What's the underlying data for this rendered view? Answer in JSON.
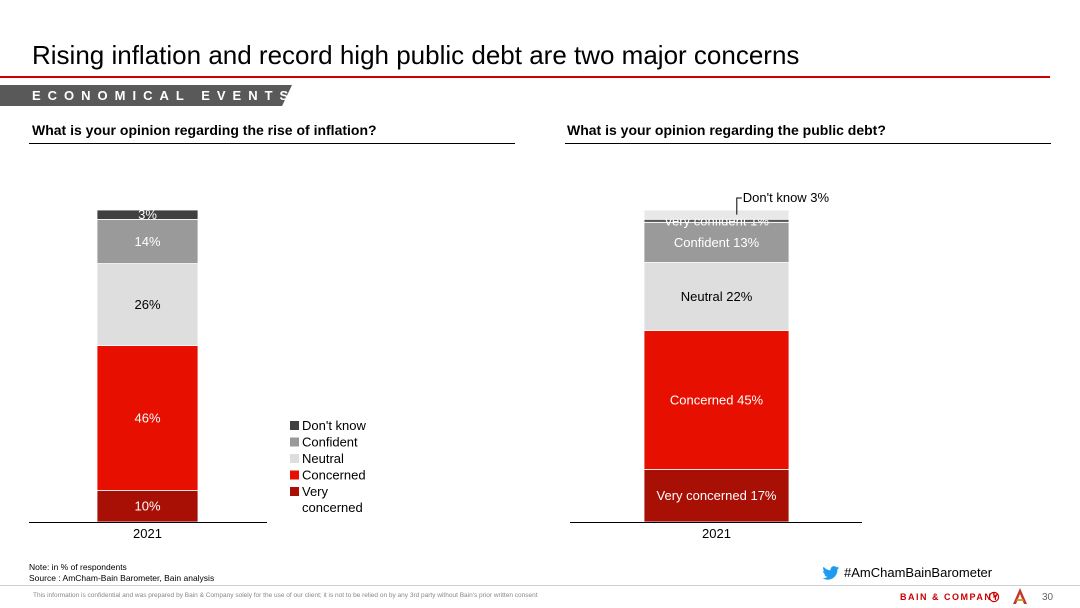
{
  "header": {
    "title": "Rising inflation and record high public debt are two major concerns",
    "section": "ECONOMICAL EVENTS"
  },
  "charts": {
    "left": {
      "question": "What is your opinion regarding the rise of inflation?"
    },
    "right": {
      "question": "What is your opinion regarding the public debt?"
    }
  },
  "legend": [
    {
      "label": "Don't know",
      "color": "#404040"
    },
    {
      "label": "Confident",
      "color": "#9a9a9a"
    },
    {
      "label": "Neutral",
      "color": "#dedede"
    },
    {
      "label": "Concerned",
      "color": "#e60f00"
    },
    {
      "label": "Very concerned",
      "color": "#a80f05"
    }
  ],
  "chart_data": [
    {
      "type": "bar",
      "stacked": true,
      "title": "What is your opinion regarding the rise of inflation?",
      "categories": [
        "2021"
      ],
      "series": [
        {
          "name": "Very concerned",
          "values": [
            10
          ],
          "label": "10%",
          "color": "#a80f05",
          "text_color": "#ffffff"
        },
        {
          "name": "Concerned",
          "values": [
            46
          ],
          "label": "46%",
          "color": "#e60f00",
          "text_color": "#ffffff"
        },
        {
          "name": "Neutral",
          "values": [
            26
          ],
          "label": "26%",
          "color": "#dedede",
          "text_color": "#000000"
        },
        {
          "name": "Confident",
          "values": [
            14
          ],
          "label": "14%",
          "color": "#9a9a9a",
          "text_color": "#ffffff"
        },
        {
          "name": "Don't know",
          "values": [
            3
          ],
          "label": "3%",
          "color": "#404040",
          "text_color": "#ffffff"
        }
      ],
      "ylim": [
        0,
        100
      ],
      "legend": "right"
    },
    {
      "type": "bar",
      "stacked": true,
      "title": "What is your opinion regarding the public debt?",
      "categories": [
        "2021"
      ],
      "series": [
        {
          "name": "Very concerned",
          "values": [
            17
          ],
          "label": "Very concerned 17%",
          "color": "#a80f05",
          "text_color": "#ffffff"
        },
        {
          "name": "Concerned",
          "values": [
            45
          ],
          "label": "Concerned 45%",
          "color": "#e60f00",
          "text_color": "#ffffff"
        },
        {
          "name": "Neutral",
          "values": [
            22
          ],
          "label": "Neutral 22%",
          "color": "#dedede",
          "text_color": "#000000"
        },
        {
          "name": "Confident",
          "values": [
            13
          ],
          "label": "Confident 13%",
          "color": "#9a9a9a",
          "text_color": "#ffffff"
        },
        {
          "name": "Very confident",
          "values": [
            1
          ],
          "label": "Very confident 1%",
          "color": "#5a5a5a",
          "text_color": "#ffffff"
        },
        {
          "name": "Don't know",
          "values": [
            3
          ],
          "label": "Don't know 3%",
          "color": "#e8e8e8",
          "text_color": "#000000",
          "callout": true
        }
      ],
      "ylim": [
        0,
        100
      ],
      "legend": "none"
    }
  ],
  "footer": {
    "note": "Note: in % of respondents",
    "source": "Source : AmCham-Bain Barometer, Bain analysis",
    "hashtag": "#AmChamBainBarometer",
    "disclaimer": "This information is confidential and was prepared by Bain & Company solely for the use of our client; it is not to be relied on by any 3rd party without Bain's prior written consent",
    "brand": "BAIN & COMPANY",
    "page_number": "30"
  }
}
